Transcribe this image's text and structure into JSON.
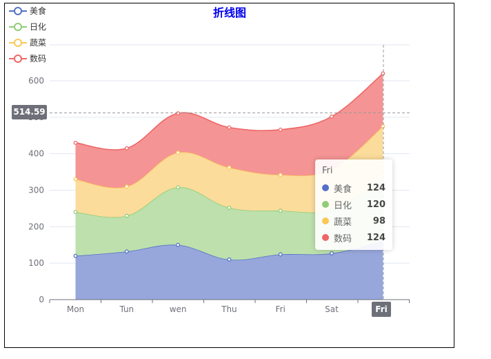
{
  "chart_data": {
    "type": "area",
    "stacked": true,
    "smooth": true,
    "title": "折线图",
    "categories": [
      "Mon",
      "Tun",
      "wen",
      "Thu",
      "Fri",
      "Sat",
      "Fri"
    ],
    "series": [
      {
        "name": "美食",
        "color": "#5470c6",
        "values": [
          120,
          132,
          150,
          110,
          124,
          127,
          160
        ]
      },
      {
        "name": "日化",
        "color": "#91cc75",
        "values": [
          120,
          98,
          158,
          142,
          120,
          120,
          170
        ]
      },
      {
        "name": "蔬菜",
        "color": "#fac858",
        "values": [
          90,
          80,
          95,
          110,
          98,
          110,
          145
        ]
      },
      {
        "name": "数码",
        "color": "#ee6666",
        "values": [
          100,
          105,
          108,
          110,
          124,
          145,
          145
        ]
      }
    ],
    "ylim": [
      0,
      700
    ],
    "yticks": [
      0,
      100,
      200,
      300,
      400,
      500,
      600
    ],
    "grid": true,
    "legend_position": "top-left",
    "crosshair": {
      "y_label": "514.59",
      "x_label": "Fri"
    }
  },
  "tooltip": {
    "title": "Fri",
    "rows": [
      {
        "name": "美食",
        "value": "124",
        "color": "#5470c6"
      },
      {
        "name": "日化",
        "value": "120",
        "color": "#91cc75"
      },
      {
        "name": "蔬菜",
        "value": "98",
        "color": "#fac858"
      },
      {
        "name": "数码",
        "value": "124",
        "color": "#ee6666"
      }
    ]
  }
}
